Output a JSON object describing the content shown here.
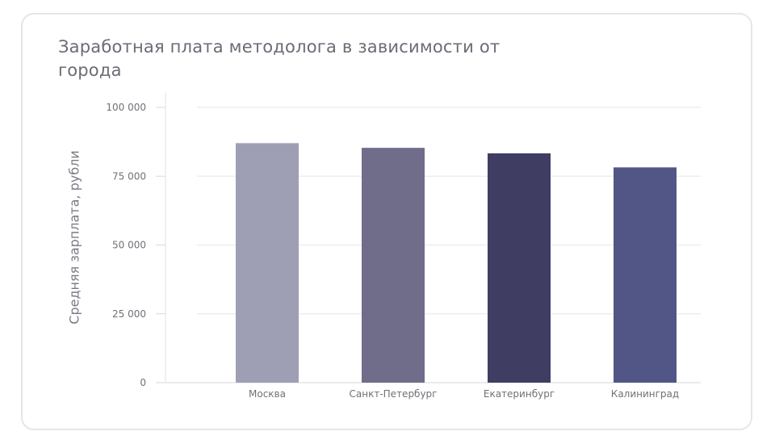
{
  "chart_data": {
    "type": "bar",
    "title": "Заработная плата методолога в зависимости от города",
    "xlabel": "",
    "ylabel": "Средняя зарплата, рубли",
    "categories": [
      "Москва",
      "Санкт-Петербург",
      "Екатеринбург",
      "Калининград"
    ],
    "values": [
      87000,
      85300,
      83300,
      78200
    ],
    "colors": [
      "#9e9fb4",
      "#6f6d8a",
      "#3f3d62",
      "#525686"
    ],
    "ylim": [
      0,
      100000
    ],
    "yticks": [
      0,
      25000,
      50000,
      75000,
      100000
    ],
    "ytick_labels": [
      "0",
      "25 000",
      "50 000",
      "75 000",
      "100 000"
    ],
    "grid": true,
    "legend": "none"
  }
}
